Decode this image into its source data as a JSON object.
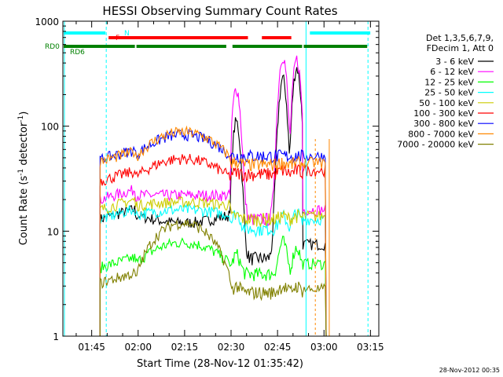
{
  "chart_data": {
    "type": "line",
    "title": "HESSI Observing Summary Count Rates",
    "xlabel": "Start Time (28-Nov-12 01:35:42)",
    "ylabel_main": "Count Rate (s",
    "ylabel_sup1": "-1",
    "ylabel_mid": " detector",
    "ylabel_sup2": "-1",
    "ylabel_end": ")",
    "yscale": "log",
    "xlim_minutes": [
      0,
      102
    ],
    "ylim": [
      1,
      1000
    ],
    "x_ticks": [
      {
        "label": "01:45",
        "minutes": 9.3
      },
      {
        "label": "02:00",
        "minutes": 24.3
      },
      {
        "label": "02:15",
        "minutes": 39.3
      },
      {
        "label": "02:30",
        "minutes": 54.3
      },
      {
        "label": "02:45",
        "minutes": 69.3
      },
      {
        "label": "03:00",
        "minutes": 84.3
      },
      {
        "label": "03:15",
        "minutes": 99.3
      }
    ],
    "y_ticks": [
      {
        "label": "1",
        "value": 1
      },
      {
        "label": "10",
        "value": 10
      },
      {
        "label": "100",
        "value": 100
      },
      {
        "label": "1000",
        "value": 1000
      }
    ],
    "legend_header": [
      "Det 1,3,5,6,7,9,",
      "FDecim 1, Att 0"
    ],
    "legend_position": "right",
    "series": [
      {
        "name": "3 - 6 keV",
        "color": "#000000",
        "day": [
          13,
          12,
          5.5,
          7.5
        ],
        "flare": [
          110,
          280,
          360
        ]
      },
      {
        "name": "6 - 12 keV",
        "color": "#ff00ff",
        "day": [
          20,
          22,
          13,
          16
        ],
        "flare": [
          230,
          470,
          430
        ]
      },
      {
        "name": "12 - 25 keV",
        "color": "#00ff00",
        "day": [
          4.5,
          7.8,
          3.9,
          4.9
        ],
        "flare": [
          6,
          8,
          7
        ]
      },
      {
        "name": "25 - 50 keV",
        "color": "#00ffff",
        "day": [
          13,
          16,
          10.5,
          13
        ],
        "flare": [
          15,
          14,
          15
        ]
      },
      {
        "name": "50 - 100 keV",
        "color": "#cccc00",
        "day": [
          16,
          19,
          13,
          14
        ],
        "flare": [
          14,
          14,
          14
        ]
      },
      {
        "name": "100 - 300 keV",
        "color": "#ff0000",
        "day": [
          30,
          49,
          35,
          38
        ],
        "flare": [
          36,
          38,
          38
        ]
      },
      {
        "name": "300 - 800 keV",
        "color": "#0000ff",
        "day": [
          48,
          83,
          52,
          52
        ],
        "flare": [
          52,
          52,
          52
        ]
      },
      {
        "name": "800 - 7000 keV",
        "color": "#ff8800",
        "day": [
          46,
          88,
          43,
          45
        ],
        "flare": [
          46,
          45,
          45
        ]
      },
      {
        "name": "7000 - 20000 keV",
        "color": "#808000",
        "day": [
          3.2,
          12,
          2.6,
          2.8
        ],
        "flare": [
          3,
          3,
          3
        ]
      }
    ],
    "day_intervals_minutes": [
      [
        12,
        23.5
      ],
      [
        23.5,
        54
      ],
      [
        54.5,
        77.5
      ],
      [
        77.5,
        85
      ]
    ],
    "intervals": [
      {
        "label": "N",
        "color": "#00ffff",
        "segments": [
          [
            0,
            14
          ],
          [
            79.5,
            99.5
          ]
        ]
      },
      {
        "label": "F",
        "color": "#ff0000",
        "segments": [
          [
            14.5,
            60
          ],
          [
            64,
            74
          ]
        ]
      },
      {
        "label": "RD0",
        "color": "#008000",
        "segments": [
          [
            0,
            23.5
          ],
          [
            23.5,
            53
          ],
          [
            54.5,
            77.5
          ],
          [
            77.5,
            98.5
          ]
        ]
      },
      {
        "label": "RD6",
        "color": "#008000",
        "segments": []
      }
    ],
    "vertical_markers_minutes": {
      "solid_cyan": [
        0.5,
        78.5
      ],
      "dashed_cyan": [
        14,
        98.5
      ],
      "solid_orange": [
        86
      ],
      "dashed_orange": [
        81.5
      ]
    }
  },
  "footer": {
    "timestamp": "28-Nov-2012 00:35"
  }
}
